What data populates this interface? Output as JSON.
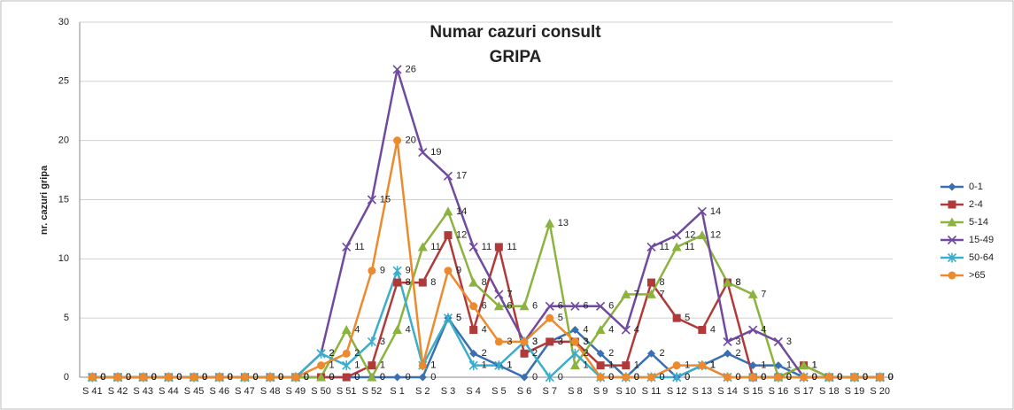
{
  "chart_data": {
    "type": "line",
    "title": [
      "Numar cazuri consult",
      "GRIPA"
    ],
    "y_label": "nr. cazuri gripa",
    "categories": [
      "S 41",
      "S 42",
      "S 43",
      "S 44",
      "S 45",
      "S 46",
      "S 47",
      "S 48",
      "S 49",
      "S 50",
      "S 51",
      "S 52",
      "S 1",
      "S 2",
      "S 3",
      "S 4",
      "S 5",
      "S 6",
      "S 7",
      "S 8",
      "S 9",
      "S 10",
      "S 11",
      "S 12",
      "S 13",
      "S 14",
      "S 15",
      "S 16",
      "S 17",
      "S 18",
      "S 19",
      "S 20"
    ],
    "series": [
      {
        "name": "0-1",
        "color": "#3a6fb0",
        "marker": "diamond",
        "values": [
          0,
          0,
          0,
          0,
          0,
          0,
          0,
          0,
          0,
          0,
          0,
          0,
          0,
          0,
          5,
          2,
          1,
          0,
          3,
          4,
          2,
          0,
          2,
          0,
          1,
          2,
          1,
          1,
          0,
          0,
          0,
          0
        ]
      },
      {
        "name": "2-4",
        "color": "#b03a3a",
        "marker": "square",
        "values": [
          0,
          0,
          0,
          0,
          0,
          0,
          0,
          0,
          0,
          0,
          0,
          1,
          8,
          8,
          12,
          4,
          11,
          2,
          3,
          3,
          1,
          1,
          8,
          5,
          4,
          8,
          0,
          0,
          1,
          0,
          0,
          0
        ]
      },
      {
        "name": "5-14",
        "color": "#8cb33f",
        "marker": "triangle",
        "values": [
          0,
          0,
          0,
          0,
          0,
          0,
          0,
          0,
          0,
          0,
          4,
          0,
          4,
          11,
          14,
          8,
          6,
          6,
          13,
          1,
          4,
          7,
          7,
          11,
          12,
          8,
          7,
          0,
          1,
          0,
          0,
          0
        ]
      },
      {
        "name": "15-49",
        "color": "#6f4a9e",
        "marker": "x",
        "values": [
          0,
          0,
          0,
          0,
          0,
          0,
          0,
          0,
          0,
          2,
          11,
          15,
          26,
          19,
          17,
          11,
          7,
          3,
          6,
          6,
          6,
          4,
          11,
          12,
          14,
          3,
          4,
          3,
          0,
          0,
          0,
          0
        ]
      },
      {
        "name": "50-64",
        "color": "#3aaecb",
        "marker": "star",
        "values": [
          0,
          0,
          0,
          0,
          0,
          0,
          0,
          0,
          0,
          2,
          1,
          3,
          9,
          1,
          5,
          1,
          1,
          3,
          0,
          2,
          0,
          0,
          0,
          0,
          1,
          0,
          0,
          0,
          0,
          0,
          0,
          0
        ]
      },
      {
        "name": ">65",
        "color": "#ee8a2e",
        "marker": "circle",
        "values": [
          0,
          0,
          0,
          0,
          0,
          0,
          0,
          0,
          0,
          1,
          2,
          9,
          20,
          1,
          9,
          6,
          3,
          3,
          5,
          3,
          0,
          0,
          0,
          1,
          1,
          0,
          0,
          0,
          0,
          0,
          0,
          0
        ]
      }
    ],
    "ylim": [
      0,
      30
    ],
    "yticks": [
      0,
      5,
      10,
      15,
      20,
      25,
      30
    ],
    "grid": true,
    "legend": "right"
  }
}
